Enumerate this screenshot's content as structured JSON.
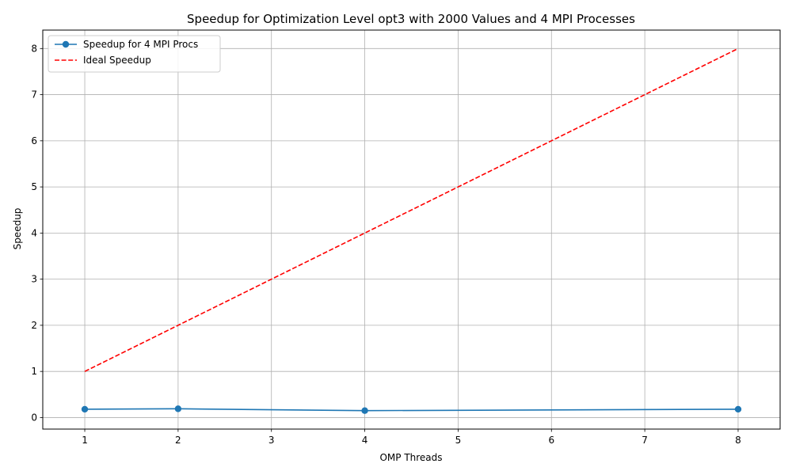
{
  "chart_data": {
    "type": "line",
    "title": "Speedup for Optimization Level opt3 with 2000 Values and 4 MPI Processes",
    "xlabel": "OMP Threads",
    "ylabel": "Speedup",
    "xlim": [
      0.55,
      8.45
    ],
    "ylim": [
      -0.25,
      8.4
    ],
    "xticks": [
      1,
      2,
      3,
      4,
      5,
      6,
      7,
      8
    ],
    "yticks": [
      0,
      1,
      2,
      3,
      4,
      5,
      6,
      7,
      8
    ],
    "grid": true,
    "legend_position": "upper-left",
    "series": [
      {
        "name": "Speedup for 4 MPI Procs",
        "color": "#1f77b4",
        "style": "solid",
        "marker": "circle",
        "x": [
          1,
          2,
          4,
          8
        ],
        "y": [
          0.18,
          0.19,
          0.15,
          0.18
        ]
      },
      {
        "name": "Ideal Speedup",
        "color": "#ff0000",
        "style": "dashed",
        "marker": "none",
        "x": [
          1,
          8
        ],
        "y": [
          1,
          8
        ]
      }
    ]
  }
}
